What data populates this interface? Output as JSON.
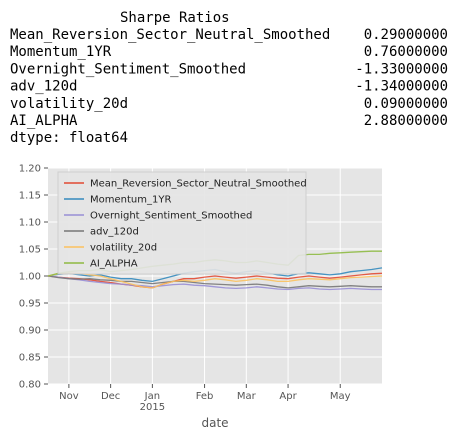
{
  "output": {
    "title": "Sharpe Ratios",
    "rows": [
      {
        "name": "Mean_Reversion_Sector_Neutral_Smoothed",
        "value": "0.29000000"
      },
      {
        "name": "Momentum_1YR",
        "value": "0.76000000"
      },
      {
        "name": "Overnight_Sentiment_Smoothed",
        "value": "-1.33000000"
      },
      {
        "name": "adv_120d",
        "value": "-1.34000000"
      },
      {
        "name": "volatility_20d",
        "value": "0.09000000"
      },
      {
        "name": "AI_ALPHA",
        "value": "2.88000000"
      }
    ],
    "dtype": "dtype: float64"
  },
  "chart_data": {
    "type": "line",
    "xlabel": "date",
    "categories": [
      null,
      null,
      "Nov",
      null,
      null,
      null,
      "Dec",
      null,
      null,
      null,
      "Jan\n2015",
      null,
      null,
      null,
      null,
      "Feb",
      null,
      null,
      null,
      "Mar",
      null,
      null,
      null,
      "Apr",
      null,
      null,
      null,
      null,
      "May",
      null,
      null,
      null,
      null
    ],
    "ylim": [
      0.8,
      1.2
    ],
    "yticks": [
      {
        "value": 0.8,
        "label": "0.80"
      },
      {
        "value": 0.85,
        "label": "0.85"
      },
      {
        "value": 0.9,
        "label": "0.90"
      },
      {
        "value": 0.95,
        "label": "0.95"
      },
      {
        "value": 1.0,
        "label": "1.00"
      },
      {
        "value": 1.05,
        "label": "1.05"
      },
      {
        "value": 1.1,
        "label": "1.10"
      },
      {
        "value": 1.15,
        "label": "1.15"
      },
      {
        "value": 1.2,
        "label": "1.20"
      }
    ],
    "grid": true,
    "legend": "upper left",
    "series": [
      {
        "name": "Mean_Reversion_Sector_Neutral_Smoothed",
        "color": "#E24A33",
        "values": [
          1.0,
          0.998,
          0.996,
          0.995,
          0.993,
          0.99,
          0.988,
          0.985,
          0.983,
          0.98,
          0.978,
          0.985,
          0.99,
          0.995,
          0.995,
          0.998,
          1.0,
          0.998,
          0.996,
          0.998,
          1.0,
          0.998,
          0.996,
          0.995,
          0.998,
          1.0,
          0.998,
          0.996,
          0.998,
          1.0,
          1.002,
          1.004,
          1.005
        ]
      },
      {
        "name": "Momentum_1YR",
        "color": "#348ABD",
        "values": [
          1.0,
          1.003,
          1.005,
          1.002,
          1.0,
          1.002,
          0.998,
          0.995,
          0.995,
          0.992,
          0.99,
          0.995,
          1.0,
          1.005,
          1.008,
          1.01,
          1.012,
          1.008,
          1.005,
          1.008,
          1.01,
          1.006,
          1.002,
          1.0,
          1.004,
          1.006,
          1.004,
          1.002,
          1.004,
          1.008,
          1.01,
          1.012,
          1.015
        ]
      },
      {
        "name": "Overnight_Sentiment_Smoothed",
        "color": "#988ED5",
        "values": [
          1.0,
          0.998,
          0.995,
          0.993,
          0.99,
          0.988,
          0.986,
          0.985,
          0.983,
          0.982,
          0.98,
          0.982,
          0.984,
          0.985,
          0.983,
          0.982,
          0.98,
          0.978,
          0.977,
          0.978,
          0.98,
          0.978,
          0.976,
          0.975,
          0.977,
          0.978,
          0.976,
          0.975,
          0.976,
          0.977,
          0.976,
          0.975,
          0.975
        ]
      },
      {
        "name": "adv_120d",
        "color": "#777777",
        "values": [
          1.0,
          0.997,
          0.995,
          0.994,
          0.995,
          0.993,
          0.992,
          0.99,
          0.99,
          0.988,
          0.986,
          0.988,
          0.99,
          0.99,
          0.988,
          0.986,
          0.985,
          0.984,
          0.983,
          0.984,
          0.985,
          0.983,
          0.98,
          0.978,
          0.98,
          0.982,
          0.981,
          0.98,
          0.981,
          0.982,
          0.981,
          0.98,
          0.98
        ]
      },
      {
        "name": "volatility_20d",
        "color": "#FBC15E",
        "values": [
          1.0,
          1.004,
          1.006,
          1.005,
          1.002,
          1.0,
          0.995,
          0.99,
          0.985,
          0.98,
          0.978,
          0.985,
          0.99,
          0.992,
          0.99,
          0.992,
          0.995,
          0.993,
          0.99,
          0.992,
          0.995,
          0.993,
          0.99,
          0.99,
          0.993,
          0.995,
          0.994,
          0.993,
          0.995,
          0.997,
          0.998,
          0.999,
          1.0
        ]
      },
      {
        "name": "AI_ALPHA",
        "color": "#8EBA42",
        "values": [
          1.0,
          1.005,
          1.008,
          1.01,
          1.01,
          1.012,
          1.008,
          1.01,
          1.012,
          1.015,
          1.018,
          1.02,
          1.022,
          1.025,
          1.025,
          1.028,
          1.03,
          1.028,
          1.025,
          1.025,
          1.028,
          1.025,
          1.022,
          1.02,
          1.038,
          1.04,
          1.04,
          1.042,
          1.043,
          1.044,
          1.045,
          1.046,
          1.046
        ]
      }
    ]
  }
}
